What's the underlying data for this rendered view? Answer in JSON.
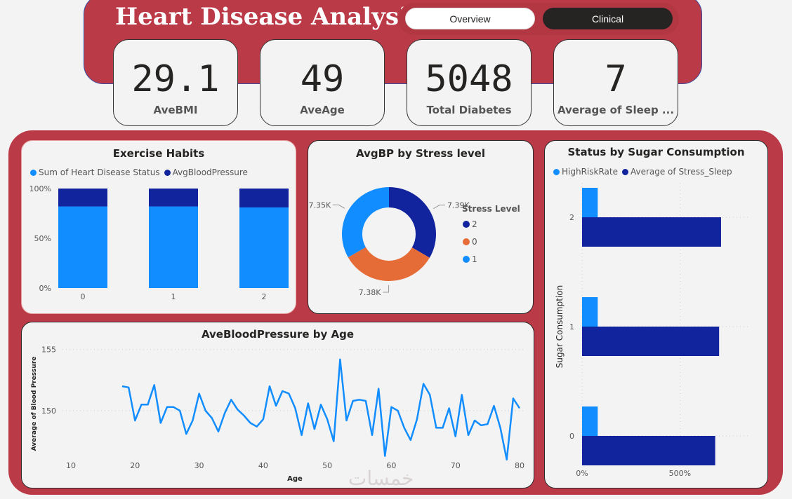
{
  "header": {
    "title": "Heart Disease Analysis",
    "nav": {
      "overview_label": "Overview",
      "clinical_label": "Clinical"
    }
  },
  "kpis": [
    {
      "value": "29.1",
      "label": "AveBMI"
    },
    {
      "value": "49",
      "label": "AveAge"
    },
    {
      "value": "5048",
      "label": "Total Diabetes"
    },
    {
      "value": "7",
      "label": "Average of Sleep ..."
    }
  ],
  "colors": {
    "light_blue": "#118dff",
    "dark_blue": "#12239e",
    "orange": "#e66c37",
    "band": "#bb3a47"
  },
  "watermark": "خمسات",
  "chart_data": [
    {
      "type": "bar",
      "stacked": "100%",
      "title": "Exercise Habits",
      "legend": [
        "Sum of Heart Disease Status",
        "AvgBloodPressure"
      ],
      "categories": [
        "0",
        "1",
        "2"
      ],
      "series": [
        {
          "name": "Sum of Heart Disease Status",
          "values": [
            82,
            82,
            81
          ]
        },
        {
          "name": "AvgBloodPressure",
          "values": [
            18,
            18,
            19
          ]
        }
      ],
      "ylim": [
        0,
        100
      ],
      "yticks": [
        "0%",
        "50%",
        "100%"
      ]
    },
    {
      "type": "pie",
      "donut": true,
      "title": "AvgBP by Stress level",
      "legend_title": "Stress Level",
      "slices": [
        {
          "name": "2",
          "value": 7.39,
          "label": "7.39K"
        },
        {
          "name": "0",
          "value": 7.38,
          "label": "7.38K"
        },
        {
          "name": "1",
          "value": 7.35,
          "label": "7.35K"
        }
      ]
    },
    {
      "type": "bar",
      "orientation": "horizontal",
      "title": "Status by Sugar Consumption",
      "legend": [
        "HighRiskRate",
        "Average of Stress_Sleep"
      ],
      "ylabel": "Sugar Consumption",
      "categories": [
        "2",
        "1",
        "0"
      ],
      "series": [
        {
          "name": "HighRiskRate",
          "values": [
            80,
            80,
            80
          ]
        },
        {
          "name": "Average of Stress_Sleep",
          "values": [
            710,
            700,
            680
          ]
        }
      ],
      "xlim": [
        0,
        850
      ],
      "xticks": [
        "0%",
        "500%"
      ]
    },
    {
      "type": "line",
      "title": "AveBloodPressure by Age",
      "xlabel": "Age",
      "ylabel": "Average of Blood Pressure",
      "xlim": [
        10,
        80
      ],
      "ylim": [
        144.5,
        155.5
      ],
      "xticks": [
        "10",
        "20",
        "30",
        "40",
        "50",
        "60",
        "70",
        "80"
      ],
      "yticks": [
        "150",
        "155"
      ],
      "x": [
        18,
        19,
        20,
        21,
        22,
        23,
        24,
        25,
        26,
        27,
        28,
        29,
        30,
        31,
        32,
        33,
        34,
        35,
        36,
        37,
        38,
        39,
        40,
        41,
        42,
        43,
        44,
        45,
        46,
        47,
        48,
        49,
        50,
        51,
        52,
        53,
        54,
        55,
        56,
        57,
        58,
        59,
        60,
        61,
        62,
        63,
        64,
        65,
        66,
        67,
        68,
        69,
        70,
        71,
        72,
        73,
        74,
        75,
        76,
        77,
        78,
        79,
        80
      ],
      "y": [
        152.0,
        151.9,
        149.2,
        150.5,
        150.5,
        152.1,
        149.0,
        150.3,
        150.3,
        150.0,
        148.1,
        149.2,
        151.4,
        150.0,
        149.4,
        148.3,
        149.8,
        150.9,
        150.1,
        149.6,
        149.0,
        148.7,
        149.3,
        152.0,
        150.4,
        151.6,
        151.4,
        150.2,
        148.0,
        150.6,
        148.5,
        150.5,
        149.3,
        147.5,
        154.2,
        149.2,
        150.8,
        150.9,
        150.8,
        148.0,
        151.8,
        146.3,
        150.3,
        150.0,
        148.6,
        147.6,
        149.3,
        152.2,
        151.3,
        148.6,
        148.6,
        150.2,
        147.9,
        151.3,
        148.0,
        149.2,
        148.8,
        148.9,
        150.4,
        148.6,
        146.0,
        151.0,
        150.2
      ]
    }
  ]
}
